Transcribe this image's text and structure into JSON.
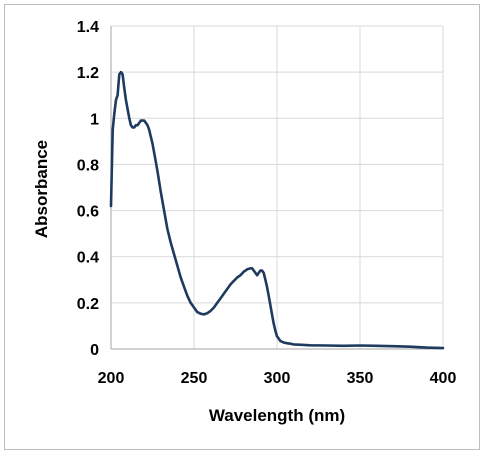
{
  "chart_data": {
    "type": "line",
    "title": "",
    "xlabel": "Wavelength (nm)",
    "ylabel": "Absorbance",
    "xlim": [
      200,
      400
    ],
    "ylim": [
      0,
      1.4
    ],
    "x_ticks": [
      200,
      250,
      300,
      350,
      400
    ],
    "y_ticks": [
      0,
      0.2,
      0.4,
      0.6,
      0.8,
      1,
      1.2,
      1.4
    ],
    "x_tick_labels": [
      "200",
      "250",
      "300",
      "350",
      "400"
    ],
    "y_tick_labels": [
      "0",
      "0.2",
      "0.4",
      "0.6",
      "0.8",
      "1",
      "1.2",
      "1.4"
    ],
    "grid": true,
    "legend": "none",
    "line_color": "#1f3a5f",
    "grid_color": "#d9d9d9",
    "series": [
      {
        "x": [
          200,
          201,
          202,
          203,
          204,
          205,
          206,
          207,
          208,
          209,
          210,
          211,
          212,
          213,
          214,
          215,
          216,
          217,
          218,
          219,
          220,
          221,
          222,
          223,
          224,
          225,
          226,
          228,
          230,
          232,
          234,
          236,
          238,
          240,
          242,
          244,
          246,
          248,
          250,
          252,
          254,
          256,
          258,
          260,
          262,
          264,
          266,
          268,
          270,
          272,
          274,
          276,
          278,
          280,
          282,
          284,
          285,
          286,
          287,
          288,
          289,
          290,
          291,
          292,
          293,
          294,
          295,
          296,
          297,
          298,
          299,
          300,
          302,
          304,
          306,
          308,
          310,
          315,
          320,
          330,
          340,
          350,
          360,
          370,
          380,
          390,
          400
        ],
        "y": [
          0.62,
          0.95,
          1.02,
          1.08,
          1.1,
          1.19,
          1.2,
          1.19,
          1.13,
          1.08,
          1.04,
          1.0,
          0.97,
          0.96,
          0.96,
          0.97,
          0.97,
          0.98,
          0.99,
          0.99,
          0.99,
          0.98,
          0.97,
          0.95,
          0.92,
          0.89,
          0.85,
          0.77,
          0.68,
          0.6,
          0.52,
          0.46,
          0.41,
          0.36,
          0.31,
          0.27,
          0.23,
          0.2,
          0.18,
          0.16,
          0.153,
          0.15,
          0.155,
          0.165,
          0.18,
          0.2,
          0.22,
          0.24,
          0.26,
          0.28,
          0.295,
          0.31,
          0.32,
          0.335,
          0.345,
          0.35,
          0.35,
          0.34,
          0.33,
          0.32,
          0.33,
          0.34,
          0.34,
          0.33,
          0.3,
          0.27,
          0.23,
          0.19,
          0.15,
          0.11,
          0.08,
          0.055,
          0.035,
          0.028,
          0.025,
          0.023,
          0.02,
          0.018,
          0.016,
          0.015,
          0.014,
          0.015,
          0.014,
          0.012,
          0.01,
          0.006,
          0.004
        ]
      }
    ]
  }
}
